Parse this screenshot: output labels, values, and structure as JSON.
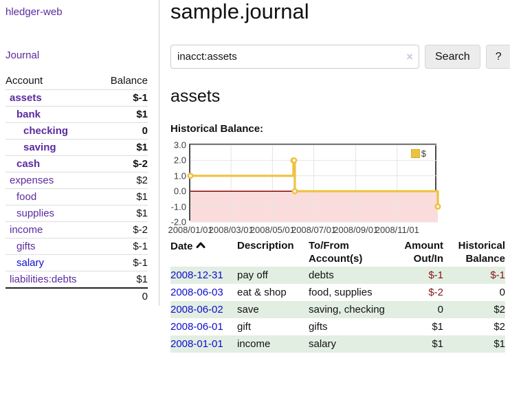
{
  "colors": {
    "link_purple": "#5b2a9e",
    "link_blue": "#0d0dcf",
    "negative": "#841717",
    "negative_muted": "#b96f6f",
    "row_stripe_green": "#e2eee2",
    "series_gold": "#edc240",
    "negative_region_pink": "#fbdcdc",
    "zero_line_maroon": "#8b0000"
  },
  "sidebar": {
    "app_title": "hledger-web",
    "journal_label": "Journal",
    "accounts_table": {
      "headers": [
        "Account",
        "Balance"
      ],
      "rows": [
        {
          "name": "assets",
          "depth": 1,
          "bold": true,
          "balance": "$-1"
        },
        {
          "name": "bank",
          "depth": 2,
          "bold": true,
          "balance": "$1"
        },
        {
          "name": "checking",
          "depth": 3,
          "bold": true,
          "balance": "0"
        },
        {
          "name": "saving",
          "depth": 3,
          "bold": true,
          "balance": "$1"
        },
        {
          "name": "cash",
          "depth": 2,
          "bold": true,
          "balance": "$-2"
        },
        {
          "name": "expenses",
          "depth": 1,
          "bold": false,
          "balance": "$2"
        },
        {
          "name": "food",
          "depth": 2,
          "bold": false,
          "balance": "$1"
        },
        {
          "name": "supplies",
          "depth": 2,
          "bold": false,
          "balance": "$1"
        },
        {
          "name": "income",
          "depth": 1,
          "bold": false,
          "balance": "$-2",
          "muted": true
        },
        {
          "name": "gifts",
          "depth": 2,
          "bold": false,
          "balance": "$-1",
          "muted": true
        },
        {
          "name": "salary",
          "depth": 2,
          "bold": false,
          "balance": "$-1",
          "muted": true,
          "blue": true
        },
        {
          "name": "liabilities:debts",
          "depth": 1,
          "bold": false,
          "balance": "$1"
        }
      ],
      "total": "0"
    }
  },
  "main": {
    "title": "sample.journal",
    "search": {
      "value": "inacct:assets",
      "clear_icon": "×",
      "search_button": "Search",
      "help_button": "?"
    },
    "account_heading": "assets"
  },
  "chart_data": {
    "type": "line",
    "step": true,
    "title": "Historical Balance:",
    "legend": "$",
    "legend_position": "top-right",
    "grid": true,
    "xlim": [
      "2008-01-01",
      "2008-12-31"
    ],
    "ylim": [
      -2,
      3
    ],
    "x_ticks": [
      "2008/01/01",
      "2008/03/01",
      "2008/05/01",
      "2008/07/01",
      "2008/09/01",
      "2008/11/01"
    ],
    "y_ticks": [
      "3.0",
      "2.0",
      "1.0",
      "0.0",
      "-1.0",
      "-2.0"
    ],
    "series": [
      {
        "name": "$",
        "color": "#edc240",
        "points": [
          [
            "2008-01-01",
            1
          ],
          [
            "2008-06-01",
            2
          ],
          [
            "2008-06-02",
            2
          ],
          [
            "2008-06-03",
            0
          ],
          [
            "2008-12-31",
            -1
          ]
        ]
      }
    ],
    "negative_region_color": "#fbdcdc",
    "zero_line_color": "#8b0000"
  },
  "register": {
    "headers": [
      "Date",
      "Description",
      "To/From Account(s)",
      "Amount Out/In",
      "Historical Balance"
    ],
    "rows": [
      {
        "date": "2008-12-31",
        "description": "pay off",
        "accounts": "debts",
        "amount": "$-1",
        "balance": "$-1"
      },
      {
        "date": "2008-06-03",
        "description": "eat & shop",
        "accounts": "food, supplies",
        "amount": "$-2",
        "balance": "0"
      },
      {
        "date": "2008-06-02",
        "description": "save",
        "accounts": "saving, checking",
        "amount": "0",
        "balance": "$2"
      },
      {
        "date": "2008-06-01",
        "description": "gift",
        "accounts": "gifts",
        "amount": "$1",
        "balance": "$2"
      },
      {
        "date": "2008-01-01",
        "description": "income",
        "accounts": "salary",
        "amount": "$1",
        "balance": "$1"
      }
    ]
  }
}
